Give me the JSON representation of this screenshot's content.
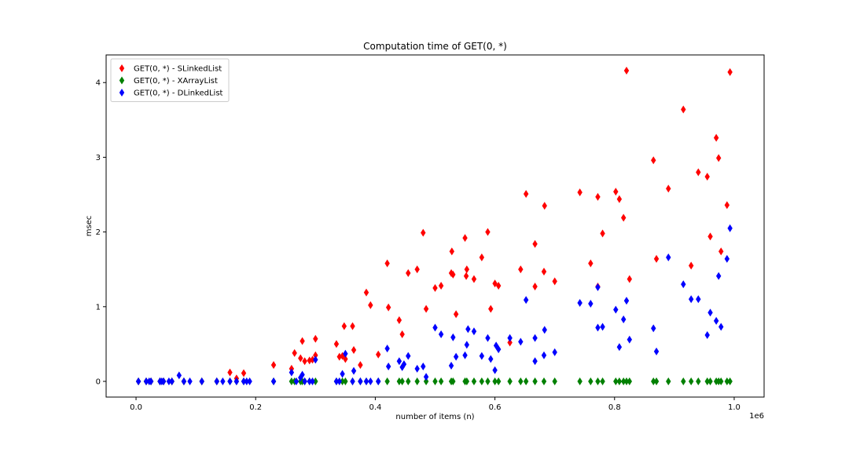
{
  "chart_data": {
    "type": "scatter",
    "title": "Computation time of GET(0, *)",
    "xlabel": "number of items (n)",
    "ylabel": "msec",
    "x_offset_label": "1e6",
    "xlim": [
      -0.05,
      1.05
    ],
    "ylim": [
      -0.21,
      4.37
    ],
    "x_ticks": [
      0.0,
      0.2,
      0.4,
      0.6,
      0.8,
      1.0
    ],
    "x_tick_labels": [
      "0.0",
      "0.2",
      "0.4",
      "0.6",
      "0.8",
      "1.0"
    ],
    "y_ticks": [
      0,
      1,
      2,
      3,
      4
    ],
    "y_tick_labels": [
      "0",
      "1",
      "2",
      "3",
      "4"
    ],
    "grid": false,
    "legend_position": "top-left",
    "marker": "diamond",
    "series": [
      {
        "name": "GET(0, *) - SLinkedList",
        "color": "#ff0000",
        "points": [
          [
            0.004,
            0
          ],
          [
            0.017,
            0
          ],
          [
            0.025,
            0
          ],
          [
            0.04,
            0
          ],
          [
            0.046,
            0
          ],
          [
            0.06,
            0
          ],
          [
            0.08,
            0
          ],
          [
            0.11,
            0
          ],
          [
            0.135,
            0
          ],
          [
            0.157,
            0.12
          ],
          [
            0.168,
            0.04
          ],
          [
            0.18,
            0.11
          ],
          [
            0.23,
            0.22
          ],
          [
            0.26,
            0.17
          ],
          [
            0.265,
            0.38
          ],
          [
            0.275,
            0.31
          ],
          [
            0.278,
            0.54
          ],
          [
            0.282,
            0.27
          ],
          [
            0.29,
            0.28
          ],
          [
            0.295,
            0.29
          ],
          [
            0.3,
            0.57
          ],
          [
            0.3,
            0.35
          ],
          [
            0.335,
            0.5
          ],
          [
            0.34,
            0.33
          ],
          [
            0.345,
            0.34
          ],
          [
            0.348,
            0.74
          ],
          [
            0.35,
            0.3
          ],
          [
            0.362,
            0.74
          ],
          [
            0.364,
            0.42
          ],
          [
            0.375,
            0.22
          ],
          [
            0.385,
            1.19
          ],
          [
            0.392,
            1.02
          ],
          [
            0.405,
            0.36
          ],
          [
            0.42,
            1.58
          ],
          [
            0.422,
            0.99
          ],
          [
            0.44,
            0.82
          ],
          [
            0.445,
            0.63
          ],
          [
            0.455,
            1.45
          ],
          [
            0.47,
            1.5
          ],
          [
            0.48,
            1.99
          ],
          [
            0.485,
            0.97
          ],
          [
            0.5,
            1.25
          ],
          [
            0.51,
            1.28
          ],
          [
            0.527,
            1.45
          ],
          [
            0.528,
            1.74
          ],
          [
            0.53,
            1.43
          ],
          [
            0.535,
            0.9
          ],
          [
            0.55,
            1.92
          ],
          [
            0.552,
            1.41
          ],
          [
            0.553,
            1.5
          ],
          [
            0.565,
            1.37
          ],
          [
            0.578,
            1.66
          ],
          [
            0.588,
            2.0
          ],
          [
            0.593,
            0.97
          ],
          [
            0.6,
            1.31
          ],
          [
            0.606,
            1.28
          ],
          [
            0.625,
            0.52
          ],
          [
            0.643,
            1.5
          ],
          [
            0.652,
            2.51
          ],
          [
            0.667,
            1.84
          ],
          [
            0.667,
            1.27
          ],
          [
            0.682,
            1.47
          ],
          [
            0.683,
            2.35
          ],
          [
            0.7,
            1.34
          ],
          [
            0.742,
            2.53
          ],
          [
            0.76,
            1.58
          ],
          [
            0.772,
            1.27
          ],
          [
            0.772,
            2.47
          ],
          [
            0.78,
            1.98
          ],
          [
            0.802,
            2.54
          ],
          [
            0.808,
            2.44
          ],
          [
            0.815,
            2.19
          ],
          [
            0.82,
            4.16
          ],
          [
            0.825,
            1.37
          ],
          [
            0.865,
            2.96
          ],
          [
            0.87,
            1.64
          ],
          [
            0.89,
            2.58
          ],
          [
            0.915,
            3.64
          ],
          [
            0.928,
            1.55
          ],
          [
            0.94,
            2.8
          ],
          [
            0.955,
            2.74
          ],
          [
            0.96,
            1.94
          ],
          [
            0.97,
            3.26
          ],
          [
            0.974,
            2.99
          ],
          [
            0.978,
            1.74
          ],
          [
            0.988,
            2.36
          ],
          [
            0.993,
            4.14
          ]
        ]
      },
      {
        "name": "GET(0, *) - XArrayList",
        "color": "#008000",
        "points": [
          [
            0.004,
            0
          ],
          [
            0.017,
            0
          ],
          [
            0.025,
            0
          ],
          [
            0.04,
            0
          ],
          [
            0.046,
            0
          ],
          [
            0.06,
            0
          ],
          [
            0.08,
            0
          ],
          [
            0.11,
            0
          ],
          [
            0.135,
            0
          ],
          [
            0.157,
            0
          ],
          [
            0.168,
            0
          ],
          [
            0.18,
            0
          ],
          [
            0.23,
            0
          ],
          [
            0.26,
            0
          ],
          [
            0.265,
            0
          ],
          [
            0.275,
            0
          ],
          [
            0.278,
            0
          ],
          [
            0.282,
            0
          ],
          [
            0.29,
            0
          ],
          [
            0.3,
            0
          ],
          [
            0.335,
            0
          ],
          [
            0.345,
            0
          ],
          [
            0.35,
            0
          ],
          [
            0.362,
            0
          ],
          [
            0.375,
            0
          ],
          [
            0.385,
            0
          ],
          [
            0.405,
            0
          ],
          [
            0.42,
            0
          ],
          [
            0.44,
            0
          ],
          [
            0.445,
            0
          ],
          [
            0.455,
            0
          ],
          [
            0.47,
            0
          ],
          [
            0.485,
            0
          ],
          [
            0.5,
            0
          ],
          [
            0.51,
            0
          ],
          [
            0.527,
            0
          ],
          [
            0.53,
            0
          ],
          [
            0.55,
            0
          ],
          [
            0.553,
            0
          ],
          [
            0.565,
            0
          ],
          [
            0.578,
            0
          ],
          [
            0.588,
            0
          ],
          [
            0.6,
            0
          ],
          [
            0.606,
            0
          ],
          [
            0.625,
            0
          ],
          [
            0.643,
            0
          ],
          [
            0.652,
            0
          ],
          [
            0.667,
            0
          ],
          [
            0.682,
            0
          ],
          [
            0.7,
            0
          ],
          [
            0.742,
            0
          ],
          [
            0.76,
            0
          ],
          [
            0.772,
            0
          ],
          [
            0.78,
            0
          ],
          [
            0.802,
            0
          ],
          [
            0.808,
            0
          ],
          [
            0.815,
            0
          ],
          [
            0.82,
            0
          ],
          [
            0.825,
            0
          ],
          [
            0.865,
            0
          ],
          [
            0.87,
            0
          ],
          [
            0.89,
            0
          ],
          [
            0.915,
            0
          ],
          [
            0.928,
            0
          ],
          [
            0.94,
            0
          ],
          [
            0.955,
            0
          ],
          [
            0.96,
            0
          ],
          [
            0.97,
            0
          ],
          [
            0.974,
            0
          ],
          [
            0.978,
            0
          ],
          [
            0.988,
            0
          ],
          [
            0.993,
            0
          ]
        ]
      },
      {
        "name": "GET(0, *) - DLinkedList",
        "color": "#0000ff",
        "points": [
          [
            0.004,
            0
          ],
          [
            0.017,
            0
          ],
          [
            0.022,
            0
          ],
          [
            0.025,
            0
          ],
          [
            0.04,
            0
          ],
          [
            0.043,
            0
          ],
          [
            0.046,
            0
          ],
          [
            0.055,
            0
          ],
          [
            0.06,
            0
          ],
          [
            0.072,
            0.08
          ],
          [
            0.08,
            0
          ],
          [
            0.09,
            0
          ],
          [
            0.11,
            0
          ],
          [
            0.135,
            0
          ],
          [
            0.145,
            0
          ],
          [
            0.157,
            0
          ],
          [
            0.168,
            0
          ],
          [
            0.18,
            0
          ],
          [
            0.185,
            0
          ],
          [
            0.19,
            0
          ],
          [
            0.23,
            0
          ],
          [
            0.26,
            0.12
          ],
          [
            0.268,
            0
          ],
          [
            0.275,
            0.05
          ],
          [
            0.278,
            0.09
          ],
          [
            0.282,
            0
          ],
          [
            0.29,
            0
          ],
          [
            0.295,
            0
          ],
          [
            0.3,
            0.29
          ],
          [
            0.335,
            0
          ],
          [
            0.34,
            0
          ],
          [
            0.345,
            0.1
          ],
          [
            0.35,
            0.37
          ],
          [
            0.362,
            0
          ],
          [
            0.364,
            0.14
          ],
          [
            0.375,
            0
          ],
          [
            0.385,
            0
          ],
          [
            0.392,
            0
          ],
          [
            0.405,
            0
          ],
          [
            0.42,
            0.44
          ],
          [
            0.422,
            0.2
          ],
          [
            0.44,
            0.27
          ],
          [
            0.445,
            0.19
          ],
          [
            0.448,
            0.23
          ],
          [
            0.455,
            0.34
          ],
          [
            0.47,
            0.17
          ],
          [
            0.48,
            0.2
          ],
          [
            0.485,
            0.06
          ],
          [
            0.5,
            0.72
          ],
          [
            0.51,
            0.63
          ],
          [
            0.527,
            0.21
          ],
          [
            0.53,
            0.59
          ],
          [
            0.535,
            0.33
          ],
          [
            0.55,
            0.35
          ],
          [
            0.553,
            0.49
          ],
          [
            0.555,
            0.7
          ],
          [
            0.565,
            0.67
          ],
          [
            0.578,
            0.34
          ],
          [
            0.588,
            0.58
          ],
          [
            0.593,
            0.3
          ],
          [
            0.6,
            0.15
          ],
          [
            0.602,
            0.48
          ],
          [
            0.606,
            0.43
          ],
          [
            0.625,
            0.58
          ],
          [
            0.643,
            0.53
          ],
          [
            0.652,
            1.09
          ],
          [
            0.667,
            0.27
          ],
          [
            0.667,
            0.58
          ],
          [
            0.682,
            0.35
          ],
          [
            0.683,
            0.69
          ],
          [
            0.7,
            0.39
          ],
          [
            0.742,
            1.05
          ],
          [
            0.76,
            1.04
          ],
          [
            0.772,
            0.72
          ],
          [
            0.772,
            1.26
          ],
          [
            0.78,
            0.73
          ],
          [
            0.802,
            0.96
          ],
          [
            0.808,
            0.46
          ],
          [
            0.815,
            0.83
          ],
          [
            0.82,
            1.08
          ],
          [
            0.825,
            0.56
          ],
          [
            0.865,
            0.71
          ],
          [
            0.87,
            0.4
          ],
          [
            0.89,
            1.66
          ],
          [
            0.915,
            1.3
          ],
          [
            0.928,
            1.1
          ],
          [
            0.94,
            1.1
          ],
          [
            0.955,
            0.62
          ],
          [
            0.96,
            0.92
          ],
          [
            0.97,
            0.81
          ],
          [
            0.974,
            1.41
          ],
          [
            0.978,
            0.73
          ],
          [
            0.988,
            1.64
          ],
          [
            0.993,
            2.05
          ]
        ]
      }
    ]
  }
}
